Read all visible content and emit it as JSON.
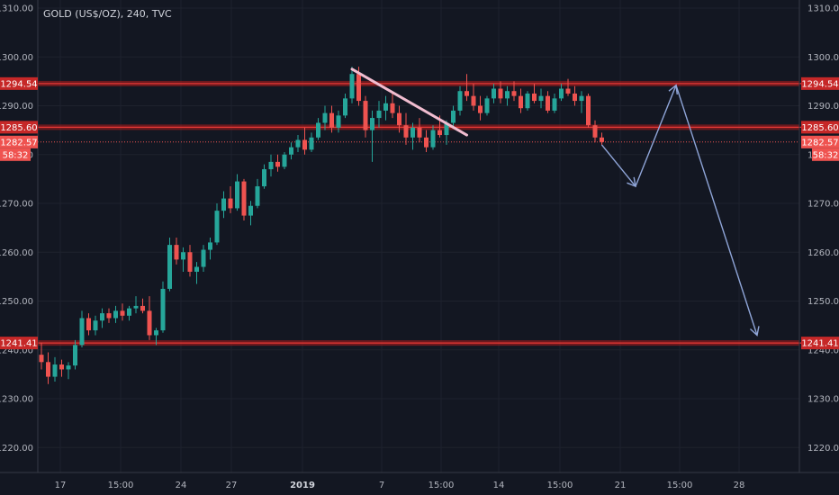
{
  "chart_data": {
    "type": "candlestick",
    "title": "GOLD (US$/OZ), 240, TVC",
    "y_ticks": [
      1220,
      1230,
      1240,
      1250,
      1260,
      1270,
      1280,
      1290,
      1300,
      1310
    ],
    "y_tick_labels": [
      "1220.00",
      "1230.00",
      "1240.00",
      "1250.00",
      "1260.00",
      "1270.00",
      "1280.00",
      "1290.00",
      "1300.00",
      "1310.00"
    ],
    "ylim": [
      1215,
      1312
    ],
    "x_ticks": [
      {
        "label": "17",
        "bold": false
      },
      {
        "label": "15:00",
        "bold": false
      },
      {
        "label": "24",
        "bold": false
      },
      {
        "label": "27",
        "bold": false
      },
      {
        "label": "2019",
        "bold": true
      },
      {
        "label": "7",
        "bold": false
      },
      {
        "label": "15:00",
        "bold": false
      },
      {
        "label": "14",
        "bold": false
      },
      {
        "label": "15:00",
        "bold": false
      },
      {
        "label": "21",
        "bold": false
      },
      {
        "label": "15:00",
        "bold": false
      },
      {
        "label": "28",
        "bold": false
      }
    ],
    "horizontal_levels": [
      1294.54,
      1285.6,
      1241.41
    ],
    "level_labels": [
      "1294.54",
      "1285.60",
      "1241.41"
    ],
    "current_price": 1282.57,
    "current_price_label": "1282.57",
    "countdown": "58:32",
    "colors": {
      "background": "#131722",
      "up": "#26a69a",
      "down": "#ef5350",
      "level": "#b71c1c",
      "projection": "#8fa5d8",
      "trendline": "#f1bdd0",
      "grid": "#1e222d",
      "badge_level": "#c62828",
      "badge_current": "#ef5350"
    },
    "candles": [
      [
        1239.0,
        1241.5,
        1236.0,
        1237.5
      ],
      [
        1237.5,
        1239.5,
        1233.0,
        1234.5
      ],
      [
        1234.5,
        1238.5,
        1233.5,
        1237.0
      ],
      [
        1237.0,
        1238.0,
        1234.5,
        1236.0
      ],
      [
        1236.0,
        1237.5,
        1234.0,
        1236.8
      ],
      [
        1236.8,
        1242.0,
        1236.0,
        1241.0
      ],
      [
        1241.0,
        1248.0,
        1240.5,
        1246.5
      ],
      [
        1246.5,
        1247.5,
        1243.0,
        1244.0
      ],
      [
        1244.0,
        1247.0,
        1243.0,
        1246.0
      ],
      [
        1246.0,
        1248.5,
        1244.5,
        1247.5
      ],
      [
        1247.5,
        1248.5,
        1245.5,
        1246.5
      ],
      [
        1246.5,
        1249.0,
        1245.5,
        1248.0
      ],
      [
        1248.0,
        1249.5,
        1246.0,
        1247.0
      ],
      [
        1247.0,
        1249.0,
        1246.0,
        1248.5
      ],
      [
        1248.5,
        1251.0,
        1247.5,
        1249.0
      ],
      [
        1249.0,
        1250.5,
        1247.5,
        1248.0
      ],
      [
        1248.0,
        1251.0,
        1242.0,
        1243.0
      ],
      [
        1243.0,
        1244.5,
        1241.0,
        1244.0
      ],
      [
        1244.0,
        1254.0,
        1243.5,
        1252.5
      ],
      [
        1252.5,
        1263.0,
        1252.0,
        1261.5
      ],
      [
        1261.5,
        1263.0,
        1257.5,
        1258.5
      ],
      [
        1258.5,
        1261.0,
        1256.0,
        1260.0
      ],
      [
        1260.0,
        1261.5,
        1255.0,
        1256.0
      ],
      [
        1256.0,
        1258.0,
        1253.5,
        1257.0
      ],
      [
        1257.0,
        1261.5,
        1256.0,
        1260.5
      ],
      [
        1260.5,
        1263.0,
        1258.5,
        1262.0
      ],
      [
        1262.0,
        1270.0,
        1261.5,
        1268.5
      ],
      [
        1268.5,
        1272.5,
        1267.0,
        1271.0
      ],
      [
        1271.0,
        1273.5,
        1268.0,
        1269.0
      ],
      [
        1269.0,
        1276.0,
        1268.5,
        1274.5
      ],
      [
        1274.5,
        1275.0,
        1266.5,
        1267.5
      ],
      [
        1267.5,
        1270.5,
        1265.5,
        1269.5
      ],
      [
        1269.5,
        1275.0,
        1269.0,
        1273.5
      ],
      [
        1273.5,
        1278.0,
        1273.0,
        1277.0
      ],
      [
        1277.0,
        1280.0,
        1275.5,
        1278.5
      ],
      [
        1278.5,
        1280.0,
        1276.5,
        1277.5
      ],
      [
        1277.5,
        1280.5,
        1277.0,
        1280.0
      ],
      [
        1280.0,
        1282.5,
        1279.0,
        1281.5
      ],
      [
        1281.5,
        1284.0,
        1280.5,
        1283.0
      ],
      [
        1283.0,
        1285.5,
        1280.0,
        1281.0
      ],
      [
        1281.0,
        1284.5,
        1280.5,
        1283.5
      ],
      [
        1283.5,
        1287.5,
        1283.0,
        1286.5
      ],
      [
        1286.5,
        1290.0,
        1285.0,
        1288.5
      ],
      [
        1288.5,
        1290.0,
        1284.5,
        1285.5
      ],
      [
        1285.5,
        1289.0,
        1284.5,
        1288.0
      ],
      [
        1288.0,
        1292.5,
        1287.5,
        1291.5
      ],
      [
        1291.5,
        1298.0,
        1290.5,
        1296.5
      ],
      [
        1296.5,
        1298.0,
        1290.0,
        1291.0
      ],
      [
        1291.0,
        1292.0,
        1283.5,
        1285.0
      ],
      [
        1285.0,
        1289.0,
        1278.5,
        1287.5
      ],
      [
        1287.5,
        1291.0,
        1285.5,
        1289.0
      ],
      [
        1289.0,
        1292.0,
        1287.0,
        1290.5
      ],
      [
        1290.5,
        1292.5,
        1287.5,
        1288.5
      ],
      [
        1288.5,
        1290.0,
        1284.5,
        1286.0
      ],
      [
        1286.0,
        1288.5,
        1282.0,
        1283.5
      ],
      [
        1283.5,
        1286.5,
        1281.0,
        1285.5
      ],
      [
        1285.5,
        1287.5,
        1282.5,
        1283.5
      ],
      [
        1283.5,
        1285.0,
        1280.5,
        1281.5
      ],
      [
        1281.5,
        1286.0,
        1281.0,
        1285.0
      ],
      [
        1285.0,
        1288.0,
        1283.5,
        1284.0
      ],
      [
        1284.0,
        1287.0,
        1282.0,
        1286.5
      ],
      [
        1286.5,
        1290.0,
        1285.5,
        1289.0
      ],
      [
        1289.0,
        1294.0,
        1288.0,
        1293.0
      ],
      [
        1293.0,
        1296.5,
        1291.0,
        1292.0
      ],
      [
        1292.0,
        1294.5,
        1289.0,
        1290.0
      ],
      [
        1290.0,
        1292.0,
        1287.0,
        1288.5
      ],
      [
        1288.5,
        1292.0,
        1288.0,
        1291.5
      ],
      [
        1291.5,
        1294.5,
        1290.5,
        1293.5
      ],
      [
        1293.5,
        1295.0,
        1290.5,
        1291.5
      ],
      [
        1291.5,
        1294.0,
        1290.0,
        1293.0
      ],
      [
        1293.0,
        1295.0,
        1291.0,
        1292.0
      ],
      [
        1292.0,
        1293.5,
        1288.5,
        1289.5
      ],
      [
        1289.5,
        1293.0,
        1289.0,
        1292.5
      ],
      [
        1292.5,
        1294.5,
        1290.5,
        1291.0
      ],
      [
        1291.0,
        1293.5,
        1289.5,
        1292.0
      ],
      [
        1292.0,
        1293.0,
        1288.5,
        1289.0
      ],
      [
        1289.0,
        1292.5,
        1288.5,
        1291.5
      ],
      [
        1291.5,
        1294.5,
        1291.0,
        1293.5
      ],
      [
        1293.5,
        1295.5,
        1292.0,
        1292.5
      ],
      [
        1292.5,
        1294.0,
        1290.0,
        1291.0
      ],
      [
        1291.0,
        1293.0,
        1288.5,
        1292.0
      ],
      [
        1292.0,
        1292.5,
        1285.5,
        1286.0
      ],
      [
        1286.0,
        1287.0,
        1282.5,
        1283.5
      ],
      [
        1283.5,
        1284.5,
        1282.0,
        1282.57
      ]
    ],
    "trendline": {
      "from": {
        "candle": 46,
        "value": 1297.5
      },
      "to": {
        "candle": 63,
        "value": 1284.0
      }
    },
    "projection": [
      {
        "candle": 83,
        "value": 1282.0
      },
      {
        "candle": 88,
        "value": 1273.5
      },
      {
        "candle": 94,
        "value": 1294.2
      },
      {
        "candle": 106,
        "value": 1243.0
      }
    ]
  }
}
